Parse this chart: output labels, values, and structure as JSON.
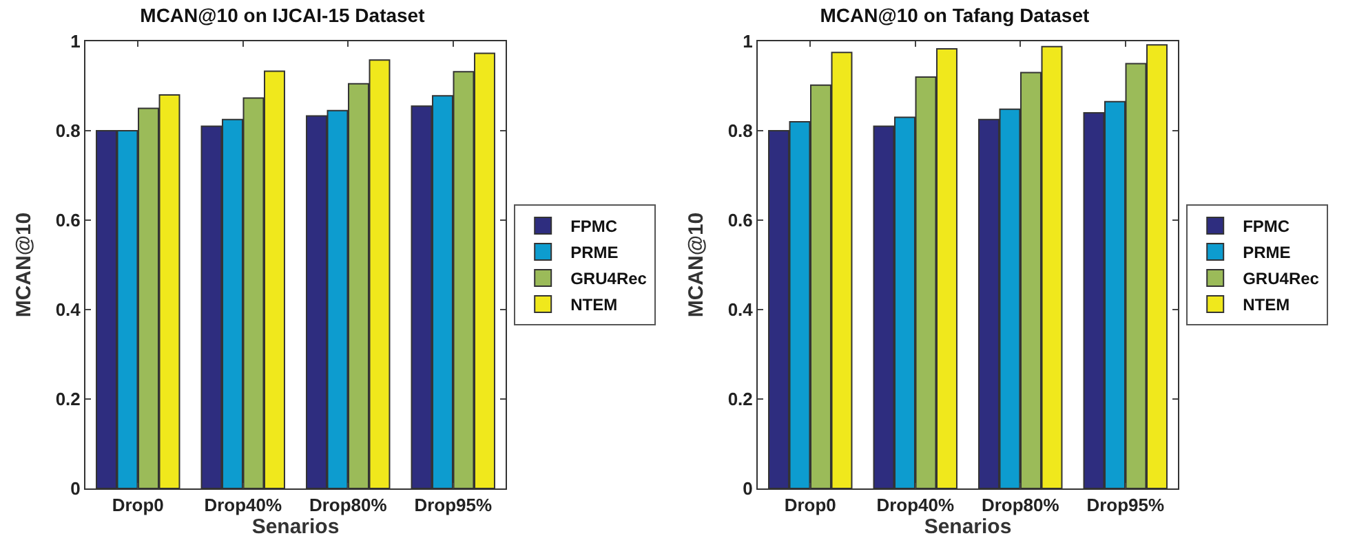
{
  "chart_data": [
    {
      "type": "bar",
      "title": "MCAN@10 on IJCAI-15 Dataset",
      "xlabel": "Senarios",
      "ylabel": "MCAN@10",
      "categories": [
        "Drop0",
        "Drop40%",
        "Drop80%",
        "Drop95%"
      ],
      "ylim": [
        0,
        1
      ],
      "yticks": [
        0,
        0.2,
        0.4,
        0.6,
        0.8,
        1
      ],
      "grid": false,
      "legend": "right",
      "series": [
        {
          "name": "FPMC",
          "color": "#2e2d7f",
          "values": [
            0.8,
            0.81,
            0.833,
            0.855
          ]
        },
        {
          "name": "PRME",
          "color": "#0d9ccf",
          "values": [
            0.8,
            0.825,
            0.845,
            0.878
          ]
        },
        {
          "name": "GRU4Rec",
          "color": "#9bbb59",
          "values": [
            0.85,
            0.873,
            0.905,
            0.932
          ]
        },
        {
          "name": "NTEM",
          "color": "#f0e81c",
          "values": [
            0.88,
            0.933,
            0.958,
            0.973
          ]
        }
      ]
    },
    {
      "type": "bar",
      "title": "MCAN@10 on Tafang Dataset",
      "xlabel": "Senarios",
      "ylabel": "MCAN@10",
      "categories": [
        "Drop0",
        "Drop40%",
        "Drop80%",
        "Drop95%"
      ],
      "ylim": [
        0,
        1
      ],
      "yticks": [
        0,
        0.2,
        0.4,
        0.6,
        0.8,
        1
      ],
      "grid": false,
      "legend": "right",
      "series": [
        {
          "name": "FPMC",
          "color": "#2e2d7f",
          "values": [
            0.8,
            0.81,
            0.825,
            0.84
          ]
        },
        {
          "name": "PRME",
          "color": "#0d9ccf",
          "values": [
            0.82,
            0.83,
            0.848,
            0.865
          ]
        },
        {
          "name": "GRU4Rec",
          "color": "#9bbb59",
          "values": [
            0.902,
            0.92,
            0.93,
            0.95
          ]
        },
        {
          "name": "NTEM",
          "color": "#f0e81c",
          "values": [
            0.975,
            0.983,
            0.988,
            0.992
          ]
        }
      ]
    }
  ]
}
